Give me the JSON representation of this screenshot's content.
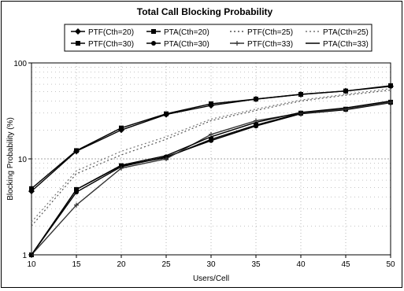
{
  "chart_data": {
    "type": "line",
    "title": "Total Call Blocking Probability",
    "xlabel": "Users/Cell",
    "ylabel": "Blocking Probability (%)",
    "y_scale": "log",
    "xlim": [
      10,
      50
    ],
    "ylim": [
      1,
      100
    ],
    "x": [
      10,
      15,
      20,
      25,
      30,
      35,
      40,
      45,
      50
    ],
    "x_ticks": [
      "10",
      "15",
      "20",
      "25",
      "30",
      "35",
      "40",
      "45",
      "50"
    ],
    "y_ticks": [
      {
        "value": 1,
        "label": "1"
      },
      {
        "value": 10,
        "label": "10"
      },
      {
        "value": 100,
        "label": "100"
      }
    ],
    "legend_position": "top",
    "grid": "dotted",
    "series": [
      {
        "name": "PTF(Cth=20)",
        "style": "solid",
        "marker": "diamond",
        "color": "#000000",
        "values": [
          4.6,
          12.0,
          20.0,
          29.0,
          36.0,
          42.0,
          47.0,
          51.0,
          57.0
        ]
      },
      {
        "name": "PTA(Cth=20)",
        "style": "solid",
        "marker": "square",
        "color": "#000000",
        "values": [
          4.9,
          12.2,
          21.0,
          29.5,
          37.5,
          42.0,
          47.0,
          51.0,
          58.0
        ]
      },
      {
        "name": "PTF(Cth=25)",
        "style": "dotted",
        "marker": "none",
        "color": "#555555",
        "values": [
          2.0,
          7.0,
          11.0,
          16.0,
          25.0,
          32.0,
          40.0,
          46.0,
          52.0
        ]
      },
      {
        "name": "PTA(Cth=25)",
        "style": "dotted",
        "marker": "none",
        "color": "#777777",
        "values": [
          2.2,
          7.5,
          12.0,
          17.0,
          26.0,
          33.0,
          41.0,
          47.0,
          54.0
        ]
      },
      {
        "name": "PTF(Cth=30)",
        "style": "solid",
        "marker": "square",
        "color": "#000000",
        "values": [
          1.0,
          4.8,
          8.5,
          10.3,
          16.0,
          22.5,
          30.0,
          33.0,
          39.0
        ]
      },
      {
        "name": "PTA(Cth=30)",
        "style": "solid",
        "marker": "circle",
        "color": "#000000",
        "values": [
          1.0,
          4.5,
          8.3,
          10.5,
          15.5,
          22.0,
          29.5,
          32.5,
          38.5
        ]
      },
      {
        "name": "PTF(Cth=33)",
        "style": "solid",
        "marker": "plus",
        "color": "#333333",
        "values": [
          1.0,
          3.3,
          8.0,
          10.0,
          18.0,
          25.0,
          30.0,
          33.0,
          39.0
        ]
      },
      {
        "name": "PTA(Cth=33)",
        "style": "solid",
        "marker": "none",
        "color": "#000000",
        "values": [
          1.0,
          4.8,
          8.6,
          10.8,
          17.0,
          24.0,
          30.5,
          34.0,
          40.0
        ]
      }
    ]
  }
}
